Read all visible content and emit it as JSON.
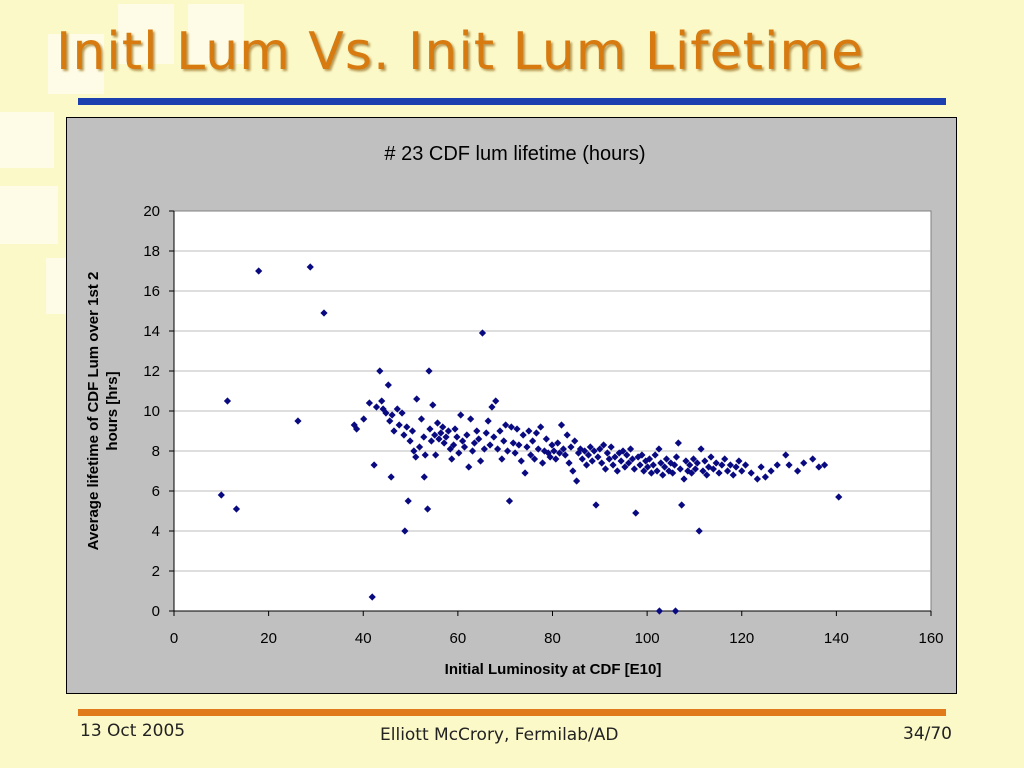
{
  "slide": {
    "title": "Initl Lum Vs. Init Lum Lifetime",
    "footer_date": "13 Oct 2005",
    "footer_author": "Elliott McCrory, Fermilab/AD",
    "footer_page": "34/70"
  },
  "colors": {
    "title": "#d77a10",
    "top_rule": "#1b3fae",
    "bottom_rule": "#e07a1a",
    "marker": "#0a0a80",
    "plot_bg": "#ffffff",
    "chart_bg": "#c0c0c0"
  },
  "chart_data": {
    "type": "scatter",
    "title": "# 23 CDF lum lifetime (hours)",
    "xlabel": "Initial Luminosity at CDF [E10]",
    "ylabel": "Average lifetime of CDF Lum over 1st 2 hours [hrs]",
    "xlim": [
      0,
      160
    ],
    "ylim": [
      0,
      20
    ],
    "xticks": [
      0,
      20,
      40,
      60,
      80,
      100,
      120,
      140,
      160
    ],
    "yticks": [
      0,
      2,
      4,
      6,
      8,
      10,
      12,
      14,
      16,
      18,
      20
    ],
    "grid": "horizontal",
    "legend": "none",
    "marker": "diamond",
    "points": [
      [
        10.0,
        5.8
      ],
      [
        11.3,
        10.5
      ],
      [
        13.2,
        5.1
      ],
      [
        17.9,
        17.0
      ],
      [
        26.2,
        9.5
      ],
      [
        28.8,
        17.2
      ],
      [
        31.7,
        14.9
      ],
      [
        38.1,
        9.3
      ],
      [
        38.6,
        9.1
      ],
      [
        40.1,
        9.6
      ],
      [
        41.3,
        10.4
      ],
      [
        41.9,
        0.7
      ],
      [
        42.3,
        7.3
      ],
      [
        42.8,
        10.2
      ],
      [
        43.5,
        12.0
      ],
      [
        43.9,
        10.5
      ],
      [
        44.2,
        10.1
      ],
      [
        44.8,
        9.9
      ],
      [
        45.3,
        11.3
      ],
      [
        45.6,
        9.5
      ],
      [
        46.1,
        9.8
      ],
      [
        45.9,
        6.7
      ],
      [
        46.5,
        9.0
      ],
      [
        47.2,
        10.1
      ],
      [
        47.6,
        9.3
      ],
      [
        48.2,
        9.9
      ],
      [
        48.6,
        8.8
      ],
      [
        48.8,
        4.0
      ],
      [
        49.2,
        9.2
      ],
      [
        49.5,
        5.5
      ],
      [
        49.9,
        8.5
      ],
      [
        50.4,
        9.0
      ],
      [
        50.7,
        8.0
      ],
      [
        51.1,
        7.7
      ],
      [
        51.3,
        10.6
      ],
      [
        51.9,
        8.2
      ],
      [
        52.3,
        9.6
      ],
      [
        52.8,
        8.7
      ],
      [
        52.9,
        6.7
      ],
      [
        53.1,
        7.8
      ],
      [
        53.6,
        5.1
      ],
      [
        53.9,
        12.0
      ],
      [
        54.1,
        9.1
      ],
      [
        54.4,
        8.5
      ],
      [
        54.7,
        10.3
      ],
      [
        55.1,
        8.8
      ],
      [
        55.3,
        7.8
      ],
      [
        55.7,
        9.4
      ],
      [
        56.0,
        8.6
      ],
      [
        56.4,
        8.9
      ],
      [
        56.8,
        9.2
      ],
      [
        57.1,
        8.4
      ],
      [
        57.5,
        8.7
      ],
      [
        58.0,
        9.0
      ],
      [
        58.4,
        8.1
      ],
      [
        58.7,
        7.6
      ],
      [
        59.1,
        8.3
      ],
      [
        59.4,
        9.1
      ],
      [
        59.8,
        8.7
      ],
      [
        60.2,
        7.9
      ],
      [
        60.6,
        9.8
      ],
      [
        61.0,
        8.5
      ],
      [
        61.4,
        8.2
      ],
      [
        61.9,
        8.8
      ],
      [
        62.3,
        7.2
      ],
      [
        62.7,
        9.6
      ],
      [
        63.1,
        8.0
      ],
      [
        63.5,
        8.4
      ],
      [
        64.0,
        9.0
      ],
      [
        64.4,
        8.6
      ],
      [
        64.8,
        7.5
      ],
      [
        65.2,
        13.9
      ],
      [
        65.6,
        8.1
      ],
      [
        66.0,
        8.9
      ],
      [
        66.4,
        9.5
      ],
      [
        66.8,
        8.3
      ],
      [
        67.2,
        10.2
      ],
      [
        67.6,
        8.7
      ],
      [
        68.0,
        10.5
      ],
      [
        68.4,
        8.1
      ],
      [
        68.9,
        9.0
      ],
      [
        69.3,
        7.6
      ],
      [
        69.7,
        8.5
      ],
      [
        70.1,
        9.3
      ],
      [
        70.5,
        8.0
      ],
      [
        70.9,
        5.5
      ],
      [
        71.3,
        9.2
      ],
      [
        71.7,
        8.4
      ],
      [
        72.1,
        7.9
      ],
      [
        72.5,
        9.1
      ],
      [
        72.9,
        8.3
      ],
      [
        73.4,
        7.5
      ],
      [
        73.8,
        8.8
      ],
      [
        74.2,
        6.9
      ],
      [
        74.6,
        8.2
      ],
      [
        75.0,
        9.0
      ],
      [
        75.4,
        7.8
      ],
      [
        75.8,
        8.5
      ],
      [
        76.2,
        7.6
      ],
      [
        76.6,
        8.9
      ],
      [
        77.0,
        8.1
      ],
      [
        77.5,
        9.2
      ],
      [
        77.9,
        7.4
      ],
      [
        78.3,
        8.0
      ],
      [
        78.7,
        8.6
      ],
      [
        79.1,
        7.9
      ],
      [
        79.5,
        7.7
      ],
      [
        79.9,
        8.3
      ],
      [
        80.3,
        8.0
      ],
      [
        80.7,
        7.6
      ],
      [
        81.1,
        8.4
      ],
      [
        81.5,
        7.9
      ],
      [
        81.9,
        9.3
      ],
      [
        82.3,
        8.1
      ],
      [
        82.7,
        7.8
      ],
      [
        83.1,
        8.8
      ],
      [
        83.5,
        7.4
      ],
      [
        83.9,
        8.2
      ],
      [
        84.3,
        7.0
      ],
      [
        84.7,
        8.5
      ],
      [
        85.1,
        6.5
      ],
      [
        85.5,
        7.9
      ],
      [
        85.9,
        8.1
      ],
      [
        86.3,
        7.6
      ],
      [
        86.8,
        8.0
      ],
      [
        87.2,
        7.3
      ],
      [
        87.6,
        7.8
      ],
      [
        88.0,
        8.2
      ],
      [
        88.4,
        7.5
      ],
      [
        88.8,
        8.0
      ],
      [
        89.2,
        5.3
      ],
      [
        89.6,
        7.7
      ],
      [
        90.0,
        8.1
      ],
      [
        90.4,
        7.4
      ],
      [
        90.8,
        8.3
      ],
      [
        91.2,
        7.1
      ],
      [
        91.6,
        7.9
      ],
      [
        92.0,
        7.6
      ],
      [
        92.4,
        8.2
      ],
      [
        92.8,
        7.3
      ],
      [
        93.2,
        7.7
      ],
      [
        93.7,
        7.0
      ],
      [
        94.1,
        7.9
      ],
      [
        94.5,
        7.5
      ],
      [
        94.9,
        8.0
      ],
      [
        95.3,
        7.2
      ],
      [
        95.7,
        7.8
      ],
      [
        96.1,
        7.4
      ],
      [
        96.5,
        8.1
      ],
      [
        96.9,
        7.6
      ],
      [
        97.3,
        7.1
      ],
      [
        97.6,
        4.9
      ],
      [
        98.1,
        7.7
      ],
      [
        98.5,
        7.3
      ],
      [
        98.9,
        7.8
      ],
      [
        99.3,
        7.0
      ],
      [
        99.7,
        7.5
      ],
      [
        100.1,
        7.2
      ],
      [
        100.5,
        7.6
      ],
      [
        100.9,
        6.9
      ],
      [
        101.3,
        7.3
      ],
      [
        101.7,
        7.8
      ],
      [
        102.1,
        7.0
      ],
      [
        102.5,
        8.1
      ],
      [
        102.6,
        0.0
      ],
      [
        102.9,
        7.4
      ],
      [
        103.3,
        6.8
      ],
      [
        103.7,
        7.2
      ],
      [
        104.1,
        7.6
      ],
      [
        104.6,
        7.0
      ],
      [
        105.0,
        7.4
      ],
      [
        105.4,
        6.9
      ],
      [
        105.8,
        7.3
      ],
      [
        106.0,
        0.0
      ],
      [
        106.2,
        7.7
      ],
      [
        106.6,
        8.4
      ],
      [
        107.0,
        7.1
      ],
      [
        107.3,
        5.3
      ],
      [
        107.8,
        6.6
      ],
      [
        108.2,
        7.5
      ],
      [
        108.6,
        7.0
      ],
      [
        109.0,
        7.3
      ],
      [
        109.4,
        6.9
      ],
      [
        109.8,
        7.6
      ],
      [
        110.2,
        7.1
      ],
      [
        110.6,
        7.4
      ],
      [
        111.0,
        4.0
      ],
      [
        111.4,
        8.1
      ],
      [
        111.8,
        7.0
      ],
      [
        112.2,
        7.5
      ],
      [
        112.6,
        6.8
      ],
      [
        113.0,
        7.2
      ],
      [
        113.5,
        7.7
      ],
      [
        114.0,
        7.1
      ],
      [
        114.6,
        7.4
      ],
      [
        115.2,
        6.9
      ],
      [
        115.8,
        7.3
      ],
      [
        116.4,
        7.6
      ],
      [
        117.0,
        7.0
      ],
      [
        117.6,
        7.3
      ],
      [
        118.2,
        6.8
      ],
      [
        118.8,
        7.2
      ],
      [
        119.4,
        7.5
      ],
      [
        120.0,
        7.0
      ],
      [
        120.8,
        7.3
      ],
      [
        122.0,
        6.9
      ],
      [
        123.3,
        6.6
      ],
      [
        124.1,
        7.2
      ],
      [
        125.0,
        6.7
      ],
      [
        126.2,
        7.0
      ],
      [
        127.5,
        7.3
      ],
      [
        129.3,
        7.8
      ],
      [
        130.0,
        7.3
      ],
      [
        131.8,
        7.0
      ],
      [
        133.1,
        7.4
      ],
      [
        135.0,
        7.6
      ],
      [
        136.3,
        7.2
      ],
      [
        137.5,
        7.3
      ],
      [
        140.5,
        5.7
      ]
    ]
  }
}
